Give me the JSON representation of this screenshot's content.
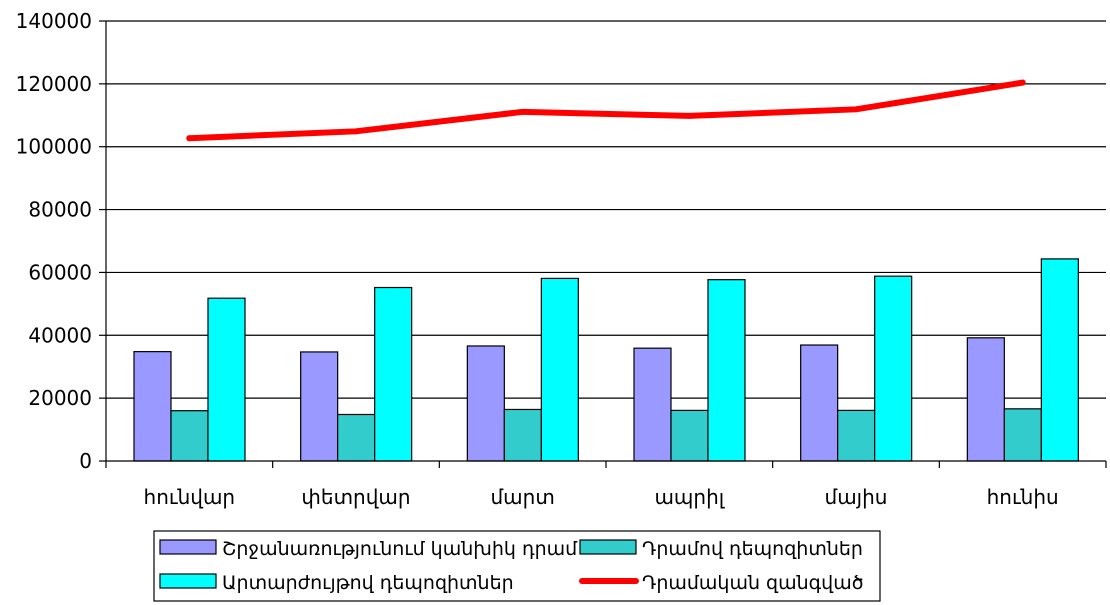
{
  "chart_data": {
    "type": "bar",
    "categories": [
      "հունվար",
      "փետրվար",
      "մարտ",
      "ապրիլ",
      "մայիս",
      "հունիս"
    ],
    "series": [
      {
        "name": "Շրջանառությունում կանխիկ դրամ",
        "type": "bar",
        "color": "#9999ff",
        "values": [
          34800,
          34700,
          36600,
          35900,
          36900,
          39200
        ]
      },
      {
        "name": "Դրամով դեպոզիտներ",
        "type": "bar",
        "color": "#33cccc",
        "values": [
          16000,
          14800,
          16400,
          16100,
          16100,
          16600
        ]
      },
      {
        "name": "Արտարժույթով դեպոզիտներ",
        "type": "bar",
        "color": "#00ffff",
        "values": [
          51800,
          55200,
          58100,
          57700,
          58800,
          64300
        ]
      },
      {
        "name": "Դրամական զանգված",
        "type": "line",
        "color": "#ff0000",
        "values": [
          102700,
          104900,
          111100,
          109800,
          111900,
          120400
        ]
      }
    ],
    "yticks": [
      "0",
      "20000",
      "40000",
      "60000",
      "80000",
      "100000",
      "120000",
      "140000"
    ],
    "ylim": [
      0,
      140000
    ],
    "grid": "horizontal",
    "legend_position": "bottom"
  }
}
